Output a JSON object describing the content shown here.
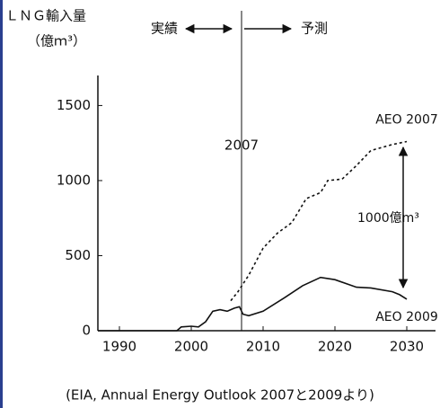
{
  "chart_data": {
    "type": "line",
    "title": "ＬＮＧ輸入量",
    "y_label": "（億ｍ³）",
    "source": "(EIA, Annual Energy Outlook 2007と2009より)",
    "xlim": [
      1987,
      2034
    ],
    "ylim": [
      0,
      1700
    ],
    "xticks": [
      1990,
      2000,
      2010,
      2020,
      2030
    ],
    "yticks": [
      0,
      500,
      1000,
      1500
    ],
    "grid": false,
    "vline": {
      "value": 2007,
      "label": "2007"
    },
    "past_label": "実績",
    "future_label": "予測",
    "gap_label": "1000億m³",
    "series": [
      {
        "name": "AEO 2007",
        "color": "#111111",
        "dashed": true,
        "x": [
          2005.5,
          2006.5,
          2008,
          2010,
          2012,
          2014,
          2015,
          2016,
          2018,
          2019,
          2021,
          2023,
          2025,
          2028,
          2030
        ],
        "values": [
          200,
          260,
          370,
          550,
          650,
          720,
          800,
          880,
          920,
          1000,
          1010,
          1100,
          1200,
          1240,
          1260
        ]
      },
      {
        "name": "AEO 2009",
        "color": "#111111",
        "dashed": false,
        "x": [
          1987,
          1998,
          1998.6,
          2000,
          2001,
          2002,
          2003,
          2004,
          2005,
          2006,
          2006.7,
          2007.2,
          2008,
          2010,
          2013,
          2015.5,
          2018,
          2020,
          2023,
          2025,
          2028,
          2029,
          2030
        ],
        "values": [
          0,
          0,
          25,
          30,
          25,
          60,
          130,
          140,
          130,
          150,
          160,
          110,
          100,
          130,
          220,
          300,
          355,
          340,
          290,
          285,
          260,
          240,
          210
        ]
      }
    ]
  }
}
